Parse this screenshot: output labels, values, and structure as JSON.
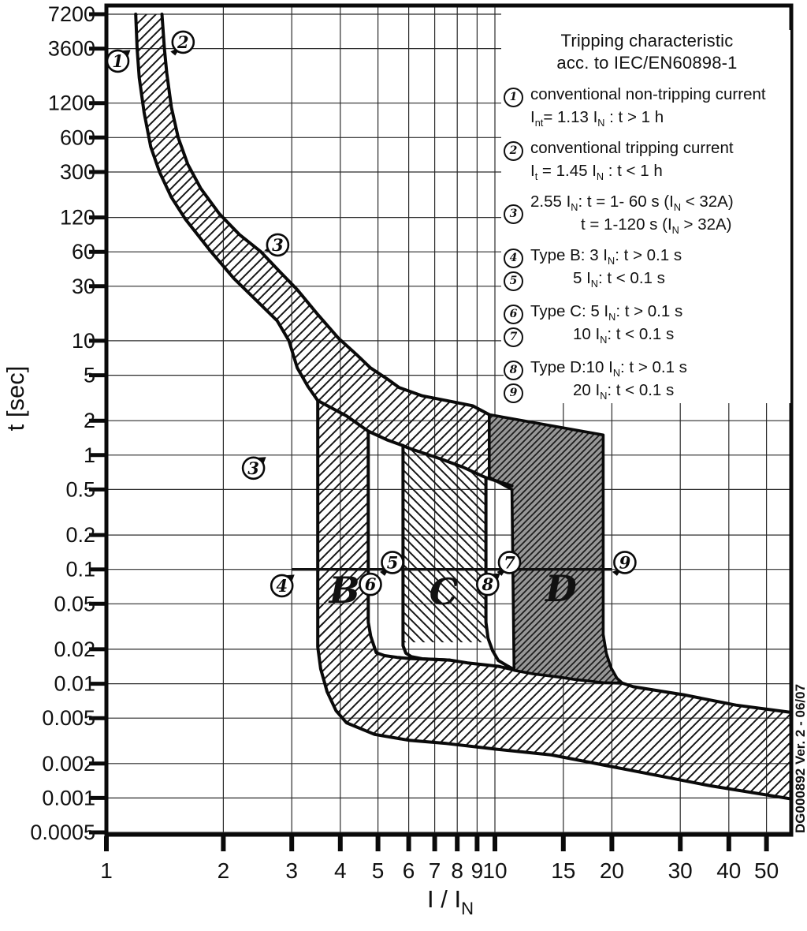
{
  "doc_number": "DG000892 Ver. 2 - 06/07",
  "legend": {
    "title_line1": "Tripping characteristic",
    "title_line2": "acc. to IEC/EN60898-1",
    "items": [
      {
        "rows": [
          {
            "num": "1",
            "text": "conventional non-tripping current"
          },
          {
            "num": "",
            "text": "I~nt~= 1.13 I~N~ : t > 1 h"
          }
        ]
      },
      {
        "rows": [
          {
            "num": "2",
            "text": "conventional tripping current"
          },
          {
            "num": "",
            "text": "I~t~ = 1.45 I~N~ : t < 1 h"
          }
        ]
      },
      {
        "rows": [
          {
            "num": "3",
            "num_center": true,
            "text": "2.55 I~N~: t = 1- 60 s (I~N~ < 32A)"
          },
          {
            "num": "",
            "text": "t = 1-120 s (I~N~ > 32A)"
          }
        ]
      },
      {
        "rows": [
          {
            "num": "4",
            "text": "Type B: 3 I~N~: t > 0.1 s"
          },
          {
            "num": "5",
            "text": "5 I~N~: t < 0.1 s"
          }
        ]
      },
      {
        "rows": [
          {
            "num": "6",
            "text": "Type C: 5 I~N~: t > 0.1 s"
          },
          {
            "num": "7",
            "text": "10 I~N~: t < 0.1 s"
          }
        ]
      },
      {
        "rows": [
          {
            "num": "8",
            "text": "Type D:10 I~N~: t > 0.1 s"
          },
          {
            "num": "9",
            "text": "20 I~N~: t < 0.1 s"
          }
        ]
      }
    ]
  },
  "chart_data": {
    "type": "line",
    "xlabel": "I / I~N~",
    "ylabel": "t [sec]",
    "x_ticks": [
      "1",
      "2",
      "3",
      "4",
      "5",
      "6",
      "7",
      "8",
      "9",
      "10",
      "15",
      "20",
      "30",
      "40",
      "50"
    ],
    "y_ticks": [
      "7200",
      "3600",
      "1200",
      "600",
      "300",
      "120",
      "60",
      "30",
      "10",
      "5",
      "2",
      "1",
      "0.5",
      "0.2",
      "0.1",
      "0.05",
      "0.02",
      "0.01",
      "0.005",
      "0.002",
      "0.001",
      "0.0005"
    ],
    "x_range": [
      1,
      58
    ],
    "y_range": [
      0.0005,
      7200
    ],
    "grid": "on",
    "legend_position": "top-right",
    "emphasis_line": {
      "t": 0.1,
      "from_i": 3,
      "to_i": 20
    },
    "thermal_band": {
      "upper_curve": [
        [
          1.19,
          7200
        ],
        [
          1.2,
          3600
        ],
        [
          1.215,
          2000
        ],
        [
          1.25,
          1000
        ],
        [
          1.3,
          500
        ],
        [
          1.37,
          300
        ],
        [
          1.47,
          180
        ],
        [
          1.6,
          115
        ],
        [
          1.86,
          60
        ],
        [
          2.13,
          35
        ],
        [
          2.45,
          22
        ],
        [
          2.75,
          15
        ],
        [
          2.95,
          10
        ],
        [
          3.1,
          5.8
        ],
        [
          3.3,
          4.0
        ],
        [
          3.5,
          3.0
        ],
        [
          4.15,
          2.2
        ],
        [
          4.72,
          1.62
        ],
        [
          5.3,
          1.35
        ],
        [
          5.8,
          1.21
        ],
        [
          6.0,
          1.15
        ],
        [
          7.3,
          0.92
        ],
        [
          8.3,
          0.78
        ],
        [
          9.48,
          0.635
        ],
        [
          11.06,
          0.538
        ]
      ],
      "lower_curve": [
        [
          1.39,
          7200
        ],
        [
          1.41,
          3600
        ],
        [
          1.43,
          2200
        ],
        [
          1.47,
          1100
        ],
        [
          1.53,
          600
        ],
        [
          1.62,
          350
        ],
        [
          1.75,
          215
        ],
        [
          1.95,
          130
        ],
        [
          2.2,
          85
        ],
        [
          2.5,
          60
        ],
        [
          2.8,
          40
        ],
        [
          3.1,
          28
        ],
        [
          3.5,
          17
        ],
        [
          3.96,
          10.5
        ],
        [
          4.4,
          7.6
        ],
        [
          4.78,
          5.8
        ],
        [
          5.3,
          4.6
        ],
        [
          5.67,
          3.9
        ],
        [
          6.5,
          3.3
        ],
        [
          7.5,
          3.0
        ],
        [
          8.76,
          2.7
        ],
        [
          9.67,
          2.26
        ]
      ]
    },
    "band_B": {
      "range_i": [
        3.5,
        4.72
      ],
      "top": [
        [
          3.5,
          3.0
        ],
        [
          4.15,
          2.2
        ],
        [
          4.72,
          1.62
        ]
      ],
      "left_flare": [
        [
          3.5,
          0.021
        ],
        [
          3.56,
          0.0135
        ],
        [
          3.7,
          0.0085
        ],
        [
          3.9,
          0.0058
        ],
        [
          4.15,
          0.00455
        ]
      ],
      "right_flare": [
        [
          4.72,
          0.0345
        ],
        [
          4.79,
          0.026
        ],
        [
          4.95,
          0.0187
        ],
        [
          5.2,
          0.0176
        ],
        [
          5.6,
          0.017
        ],
        [
          6.05,
          0.0166
        ],
        [
          7.0,
          0.0163
        ],
        [
          7.64,
          0.0161
        ]
      ]
    },
    "band_C": {
      "range_i": [
        5.8,
        9.48
      ],
      "top": [
        [
          5.8,
          1.21
        ],
        [
          6.0,
          1.15
        ],
        [
          7.3,
          0.92
        ],
        [
          8.3,
          0.78
        ],
        [
          9.48,
          0.635
        ]
      ],
      "left_flare": [
        [
          5.8,
          0.0215
        ],
        [
          5.9,
          0.0185
        ],
        [
          6.1,
          0.0172
        ],
        [
          6.5,
          0.0165
        ],
        [
          7.0,
          0.0163
        ],
        [
          7.64,
          0.0161
        ],
        [
          8.5,
          0.0152
        ],
        [
          10.2,
          0.0142
        ],
        [
          11.1,
          0.0133
        ]
      ],
      "right_flare": [
        [
          9.48,
          0.0345
        ],
        [
          9.6,
          0.025
        ],
        [
          9.85,
          0.0196
        ],
        [
          10.2,
          0.016
        ],
        [
          10.7,
          0.0145
        ],
        [
          11.15,
          0.0134
        ]
      ]
    },
    "band_D": {
      "range_i": [
        10,
        19
      ],
      "polygon": [
        [
          9.67,
          2.26
        ],
        [
          19,
          1.5
        ],
        [
          19,
          0.027
        ],
        [
          19.35,
          0.0185
        ],
        [
          19.9,
          0.0138
        ],
        [
          20.6,
          0.0112
        ],
        [
          21.3,
          0.0101
        ],
        [
          19,
          0.0102
        ],
        [
          16,
          0.0109
        ],
        [
          14.7,
          0.0114
        ],
        [
          12.5,
          0.0122
        ],
        [
          11.2,
          0.0131
        ],
        [
          11.06,
          0.5
        ],
        [
          9.67,
          0.64
        ]
      ]
    },
    "bottom_band": {
      "top": [
        [
          4.72,
          0.0345
        ],
        [
          4.79,
          0.026
        ],
        [
          4.95,
          0.0187
        ],
        [
          5.2,
          0.0176
        ],
        [
          5.6,
          0.017
        ],
        [
          6.05,
          0.0166
        ],
        [
          7.0,
          0.0163
        ],
        [
          7.64,
          0.0161
        ],
        [
          8.5,
          0.0152
        ],
        [
          10.2,
          0.0142
        ],
        [
          11.1,
          0.0133
        ],
        [
          12.5,
          0.0122
        ],
        [
          14.7,
          0.0114
        ],
        [
          17,
          0.0107
        ],
        [
          19,
          0.0102
        ],
        [
          21.3,
          0.0101
        ],
        [
          22.7,
          0.0094
        ],
        [
          30.6,
          0.008
        ],
        [
          41.7,
          0.0065
        ],
        [
          58,
          0.0056
        ]
      ],
      "bottom": [
        [
          3.5,
          0.021
        ],
        [
          3.56,
          0.0135
        ],
        [
          3.7,
          0.0085
        ],
        [
          3.9,
          0.0058
        ],
        [
          4.15,
          0.00455
        ],
        [
          4.9,
          0.0036
        ],
        [
          6.0,
          0.0032
        ],
        [
          7.5,
          0.003
        ],
        [
          10,
          0.00268
        ],
        [
          14,
          0.00238
        ],
        [
          22.3,
          0.00175
        ],
        [
          35.8,
          0.00128
        ],
        [
          58,
          0.00098
        ]
      ]
    },
    "markers": [
      {
        "num": "1",
        "i": 1.07,
        "t": 2800,
        "dir": "ur"
      },
      {
        "num": "2",
        "i": 1.575,
        "t": 4100,
        "dir": "dl"
      },
      {
        "num": "3",
        "i": 2.76,
        "t": 69,
        "dir": "l"
      },
      {
        "num": "3",
        "i": 2.39,
        "t": 0.77,
        "dir": "ur"
      },
      {
        "num": "4",
        "i": 2.83,
        "t": 0.072,
        "dir": "ur"
      },
      {
        "num": "5",
        "i": 5.45,
        "t": 0.115,
        "dir": "dl"
      },
      {
        "num": "6",
        "i": 4.78,
        "t": 0.074,
        "dir": ""
      },
      {
        "num": "7",
        "i": 10.9,
        "t": 0.115,
        "dir": "dl"
      },
      {
        "num": "8",
        "i": 9.58,
        "t": 0.074,
        "dir": "ur"
      },
      {
        "num": "9",
        "i": 21.6,
        "t": 0.115,
        "dir": "dl"
      }
    ],
    "band_labels": [
      {
        "label": "B",
        "i": 4.1,
        "t": 0.066
      },
      {
        "label": "C",
        "i": 7.38,
        "t": 0.064
      },
      {
        "label": "D",
        "i": 14.8,
        "t": 0.068
      }
    ]
  }
}
